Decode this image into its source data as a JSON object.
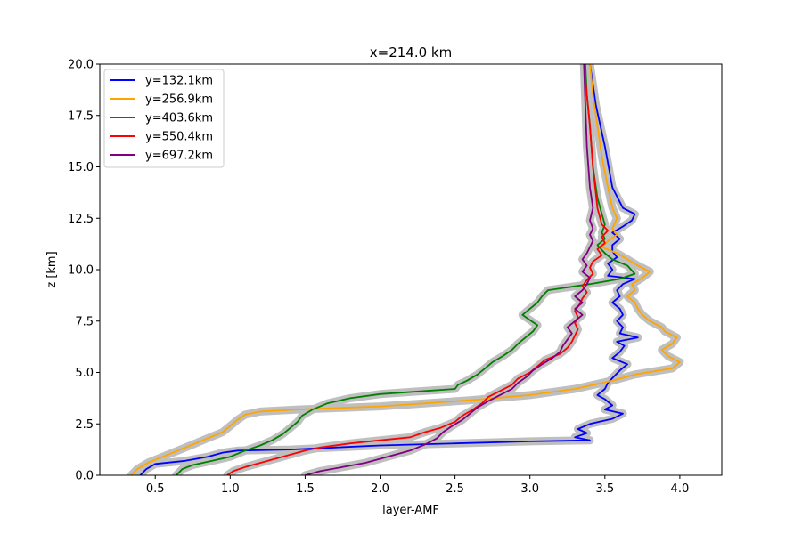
{
  "chart_data": {
    "type": "line",
    "title": "x=214.0 km",
    "xlabel": "layer-AMF",
    "ylabel": "z [km]",
    "xlim": [
      0.13,
      4.28
    ],
    "ylim": [
      0,
      20
    ],
    "xticks": [
      0.5,
      1.0,
      1.5,
      2.0,
      2.5,
      3.0,
      3.5,
      4.0
    ],
    "xtick_labels": [
      "0.5",
      "1.0",
      "1.5",
      "2.0",
      "2.5",
      "3.0",
      "3.5",
      "4.0"
    ],
    "yticks": [
      0,
      2.5,
      5,
      7.5,
      10,
      12.5,
      15,
      17.5,
      20
    ],
    "ytick_labels": [
      "0.0",
      "2.5",
      "5.0",
      "7.5",
      "10.0",
      "12.5",
      "15.0",
      "17.5",
      "20.0"
    ],
    "grid": false,
    "legend_position": "top-left",
    "uncertainty_band_color": "#bfbfbf",
    "series": [
      {
        "name": "y=132.1km",
        "color": "#0000ff",
        "points": [
          [
            0.4,
            0.0
          ],
          [
            0.44,
            0.3
          ],
          [
            0.5,
            0.55
          ],
          [
            0.7,
            0.7
          ],
          [
            0.85,
            0.9
          ],
          [
            0.95,
            1.1
          ],
          [
            1.05,
            1.2
          ],
          [
            1.4,
            1.25
          ],
          [
            1.7,
            1.35
          ],
          [
            2.0,
            1.45
          ],
          [
            2.5,
            1.55
          ],
          [
            3.0,
            1.65
          ],
          [
            3.4,
            1.7
          ],
          [
            3.3,
            1.85
          ],
          [
            3.38,
            2.05
          ],
          [
            3.32,
            2.25
          ],
          [
            3.4,
            2.5
          ],
          [
            3.55,
            2.75
          ],
          [
            3.62,
            3.0
          ],
          [
            3.5,
            3.2
          ],
          [
            3.55,
            3.4
          ],
          [
            3.5,
            3.7
          ],
          [
            3.45,
            3.9
          ],
          [
            3.5,
            4.2
          ],
          [
            3.52,
            4.5
          ],
          [
            3.56,
            4.8
          ],
          [
            3.6,
            5.1
          ],
          [
            3.65,
            5.4
          ],
          [
            3.55,
            5.7
          ],
          [
            3.6,
            6.0
          ],
          [
            3.63,
            6.3
          ],
          [
            3.58,
            6.5
          ],
          [
            3.72,
            6.7
          ],
          [
            3.6,
            6.9
          ],
          [
            3.62,
            7.2
          ],
          [
            3.58,
            7.5
          ],
          [
            3.62,
            7.8
          ],
          [
            3.6,
            8.1
          ],
          [
            3.55,
            8.4
          ],
          [
            3.6,
            8.7
          ],
          [
            3.58,
            9.0
          ],
          [
            3.62,
            9.3
          ],
          [
            3.7,
            9.55
          ],
          [
            3.52,
            9.7
          ],
          [
            3.55,
            10.0
          ],
          [
            3.52,
            10.3
          ],
          [
            3.58,
            10.6
          ],
          [
            3.55,
            10.9
          ],
          [
            3.55,
            11.2
          ],
          [
            3.6,
            11.5
          ],
          [
            3.55,
            11.8
          ],
          [
            3.62,
            12.1
          ],
          [
            3.68,
            12.4
          ],
          [
            3.7,
            12.7
          ],
          [
            3.62,
            13.0
          ],
          [
            3.55,
            14.0
          ],
          [
            3.5,
            16.0
          ],
          [
            3.44,
            18.0
          ],
          [
            3.42,
            19.0
          ],
          [
            3.4,
            20.0
          ]
        ]
      },
      {
        "name": "y=256.9km",
        "color": "#ffa500",
        "points": [
          [
            0.34,
            0.0
          ],
          [
            0.38,
            0.3
          ],
          [
            0.45,
            0.6
          ],
          [
            0.55,
            0.9
          ],
          [
            0.65,
            1.2
          ],
          [
            0.75,
            1.5
          ],
          [
            0.85,
            1.8
          ],
          [
            0.95,
            2.1
          ],
          [
            1.0,
            2.4
          ],
          [
            1.05,
            2.7
          ],
          [
            1.1,
            2.95
          ],
          [
            1.2,
            3.1
          ],
          [
            1.45,
            3.2
          ],
          [
            2.0,
            3.35
          ],
          [
            2.6,
            3.65
          ],
          [
            3.0,
            3.9
          ],
          [
            3.3,
            4.2
          ],
          [
            3.55,
            4.6
          ],
          [
            3.7,
            4.9
          ],
          [
            3.95,
            5.2
          ],
          [
            4.0,
            5.5
          ],
          [
            3.92,
            5.8
          ],
          [
            3.88,
            6.1
          ],
          [
            3.95,
            6.4
          ],
          [
            3.98,
            6.7
          ],
          [
            3.9,
            7.0
          ],
          [
            3.88,
            7.2
          ],
          [
            3.8,
            7.5
          ],
          [
            3.75,
            7.8
          ],
          [
            3.72,
            8.1
          ],
          [
            3.7,
            8.4
          ],
          [
            3.65,
            8.7
          ],
          [
            3.7,
            9.0
          ],
          [
            3.68,
            9.3
          ],
          [
            3.75,
            9.6
          ],
          [
            3.8,
            9.9
          ],
          [
            3.72,
            10.2
          ],
          [
            3.65,
            10.5
          ],
          [
            3.58,
            10.8
          ],
          [
            3.48,
            11.1
          ],
          [
            3.52,
            11.4
          ],
          [
            3.58,
            11.7
          ],
          [
            3.55,
            12.0
          ],
          [
            3.58,
            12.5
          ],
          [
            3.55,
            13.0
          ],
          [
            3.52,
            14.0
          ],
          [
            3.48,
            15.5
          ],
          [
            3.45,
            17.0
          ],
          [
            3.42,
            18.5
          ],
          [
            3.4,
            20.0
          ]
        ]
      },
      {
        "name": "y=403.6km",
        "color": "#008000",
        "points": [
          [
            0.64,
            0.0
          ],
          [
            0.68,
            0.3
          ],
          [
            0.75,
            0.5
          ],
          [
            0.88,
            0.7
          ],
          [
            1.0,
            0.9
          ],
          [
            1.1,
            1.2
          ],
          [
            1.2,
            1.45
          ],
          [
            1.28,
            1.7
          ],
          [
            1.35,
            2.0
          ],
          [
            1.4,
            2.3
          ],
          [
            1.45,
            2.6
          ],
          [
            1.48,
            2.9
          ],
          [
            1.55,
            3.2
          ],
          [
            1.65,
            3.5
          ],
          [
            1.8,
            3.75
          ],
          [
            2.0,
            3.95
          ],
          [
            2.3,
            4.1
          ],
          [
            2.5,
            4.2
          ],
          [
            2.52,
            4.4
          ],
          [
            2.58,
            4.6
          ],
          [
            2.65,
            4.9
          ],
          [
            2.7,
            5.2
          ],
          [
            2.75,
            5.5
          ],
          [
            2.82,
            5.8
          ],
          [
            2.88,
            6.1
          ],
          [
            2.92,
            6.4
          ],
          [
            2.97,
            6.7
          ],
          [
            3.02,
            7.0
          ],
          [
            3.05,
            7.3
          ],
          [
            3.0,
            7.55
          ],
          [
            2.95,
            7.8
          ],
          [
            3.0,
            8.1
          ],
          [
            3.05,
            8.4
          ],
          [
            3.08,
            8.7
          ],
          [
            3.12,
            9.0
          ],
          [
            3.4,
            9.3
          ],
          [
            3.6,
            9.55
          ],
          [
            3.7,
            9.8
          ],
          [
            3.65,
            10.2
          ],
          [
            3.55,
            10.5
          ],
          [
            3.5,
            10.8
          ],
          [
            3.45,
            11.2
          ],
          [
            3.5,
            11.5
          ],
          [
            3.48,
            11.8
          ],
          [
            3.5,
            12.2
          ],
          [
            3.48,
            12.7
          ],
          [
            3.45,
            13.5
          ],
          [
            3.42,
            15.0
          ],
          [
            3.4,
            17.0
          ],
          [
            3.38,
            18.5
          ],
          [
            3.37,
            20.0
          ]
        ]
      },
      {
        "name": "y=550.4km",
        "color": "#ff0000",
        "points": [
          [
            0.98,
            0.0
          ],
          [
            1.02,
            0.2
          ],
          [
            1.1,
            0.4
          ],
          [
            1.2,
            0.6
          ],
          [
            1.3,
            0.8
          ],
          [
            1.4,
            1.0
          ],
          [
            1.5,
            1.2
          ],
          [
            1.6,
            1.35
          ],
          [
            1.8,
            1.55
          ],
          [
            2.0,
            1.7
          ],
          [
            2.2,
            1.85
          ],
          [
            2.3,
            2.1
          ],
          [
            2.4,
            2.3
          ],
          [
            2.5,
            2.6
          ],
          [
            2.55,
            2.9
          ],
          [
            2.62,
            3.2
          ],
          [
            2.68,
            3.5
          ],
          [
            2.72,
            3.8
          ],
          [
            2.8,
            4.1
          ],
          [
            2.88,
            4.4
          ],
          [
            2.92,
            4.7
          ],
          [
            3.0,
            5.0
          ],
          [
            3.05,
            5.3
          ],
          [
            3.1,
            5.6
          ],
          [
            3.2,
            5.9
          ],
          [
            3.25,
            6.2
          ],
          [
            3.28,
            6.5
          ],
          [
            3.3,
            6.8
          ],
          [
            3.32,
            7.1
          ],
          [
            3.3,
            7.4
          ],
          [
            3.32,
            7.7
          ],
          [
            3.3,
            8.0
          ],
          [
            3.33,
            8.3
          ],
          [
            3.35,
            8.6
          ],
          [
            3.38,
            8.9
          ],
          [
            3.35,
            9.2
          ],
          [
            3.38,
            9.5
          ],
          [
            3.42,
            9.8
          ],
          [
            3.4,
            10.1
          ],
          [
            3.42,
            10.4
          ],
          [
            3.48,
            10.7
          ],
          [
            3.45,
            11.0
          ],
          [
            3.5,
            11.3
          ],
          [
            3.48,
            11.6
          ],
          [
            3.52,
            11.9
          ],
          [
            3.48,
            12.2
          ],
          [
            3.45,
            13.0
          ],
          [
            3.42,
            15.0
          ],
          [
            3.4,
            17.0
          ],
          [
            3.38,
            18.5
          ],
          [
            3.36,
            20.0
          ]
        ]
      },
      {
        "name": "y=697.2km",
        "color": "#800080",
        "points": [
          [
            1.5,
            0.0
          ],
          [
            1.6,
            0.2
          ],
          [
            1.75,
            0.4
          ],
          [
            1.9,
            0.6
          ],
          [
            2.05,
            0.9
          ],
          [
            2.2,
            1.2
          ],
          [
            2.3,
            1.5
          ],
          [
            2.38,
            1.8
          ],
          [
            2.42,
            2.1
          ],
          [
            2.48,
            2.4
          ],
          [
            2.55,
            2.7
          ],
          [
            2.6,
            3.0
          ],
          [
            2.65,
            3.3
          ],
          [
            2.72,
            3.6
          ],
          [
            2.8,
            3.9
          ],
          [
            2.88,
            4.2
          ],
          [
            2.92,
            4.5
          ],
          [
            2.98,
            4.8
          ],
          [
            3.02,
            5.1
          ],
          [
            3.08,
            5.4
          ],
          [
            3.15,
            5.7
          ],
          [
            3.2,
            6.0
          ],
          [
            3.22,
            6.3
          ],
          [
            3.25,
            6.6
          ],
          [
            3.28,
            6.9
          ],
          [
            3.25,
            7.2
          ],
          [
            3.3,
            7.5
          ],
          [
            3.35,
            7.8
          ],
          [
            3.3,
            8.1
          ],
          [
            3.35,
            8.4
          ],
          [
            3.3,
            8.7
          ],
          [
            3.35,
            9.0
          ],
          [
            3.38,
            9.3
          ],
          [
            3.4,
            9.6
          ],
          [
            3.35,
            9.9
          ],
          [
            3.38,
            10.2
          ],
          [
            3.35,
            10.5
          ],
          [
            3.38,
            10.8
          ],
          [
            3.4,
            11.1
          ],
          [
            3.42,
            11.4
          ],
          [
            3.4,
            11.7
          ],
          [
            3.42,
            12.0
          ],
          [
            3.4,
            12.4
          ],
          [
            3.42,
            13.0
          ],
          [
            3.4,
            14.0
          ],
          [
            3.38,
            16.0
          ],
          [
            3.37,
            18.0
          ],
          [
            3.36,
            20.0
          ]
        ]
      }
    ]
  }
}
